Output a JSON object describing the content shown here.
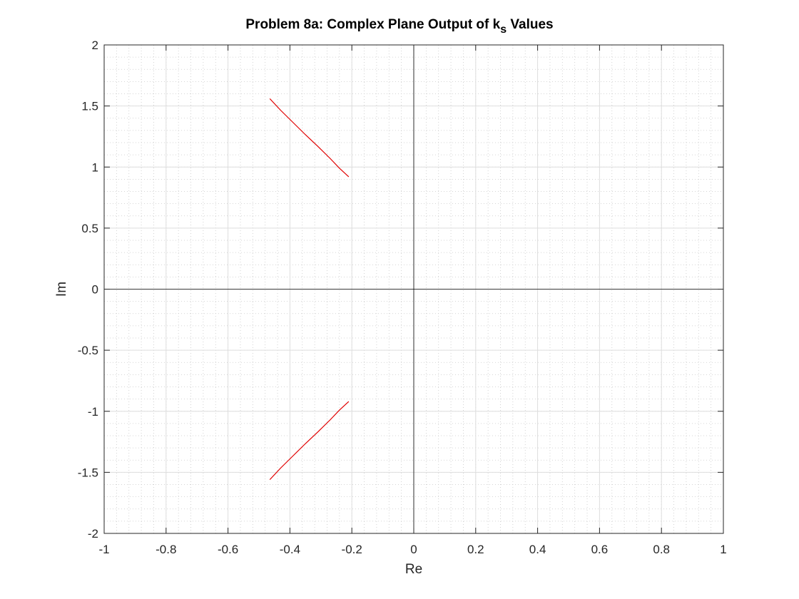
{
  "chart_data": {
    "type": "line",
    "title_main": "Problem 8a: Complex Plane Output of k",
    "title_sub": "s",
    "title_tail": " Values",
    "xlabel": "Re",
    "ylabel": "Im",
    "xlim": [
      -1,
      1
    ],
    "ylim": [
      -2,
      2
    ],
    "xticks": [
      -1,
      -0.8,
      -0.6,
      -0.4,
      -0.2,
      0,
      0.2,
      0.4,
      0.6,
      0.8,
      1
    ],
    "xtick_labels": [
      "-1",
      "-0.8",
      "-0.6",
      "-0.4",
      "-0.2",
      "0",
      "0.2",
      "0.4",
      "0.6",
      "0.8",
      "1"
    ],
    "yticks": [
      -2,
      -1.5,
      -1,
      -0.5,
      0,
      0.5,
      1,
      1.5,
      2
    ],
    "ytick_labels": [
      "-2",
      "-1.5",
      "-1",
      "-0.5",
      "0",
      "0.5",
      "1",
      "1.5",
      "2"
    ],
    "grid": true,
    "minor_grid": true,
    "series_color": "#e00000",
    "series": [
      {
        "x": [
          -0.465,
          -0.43,
          -0.39,
          -0.35,
          -0.31,
          -0.27,
          -0.24,
          -0.21
        ],
        "y": [
          1.56,
          1.465,
          1.365,
          1.265,
          1.17,
          1.07,
          0.99,
          0.92
        ]
      },
      {
        "x": [
          -0.465,
          -0.43,
          -0.39,
          -0.35,
          -0.31,
          -0.27,
          -0.24,
          -0.21
        ],
        "y": [
          -1.56,
          -1.465,
          -1.365,
          -1.265,
          -1.17,
          -1.07,
          -0.99,
          -0.92
        ]
      }
    ]
  }
}
